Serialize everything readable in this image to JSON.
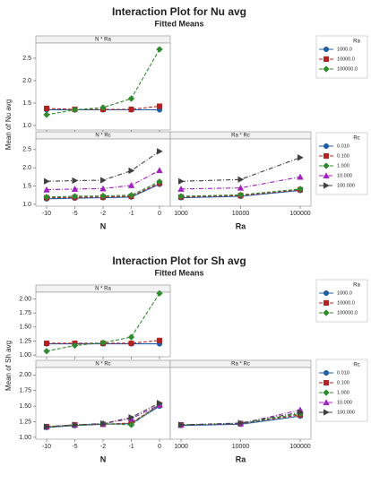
{
  "chart_data": [
    {
      "type": "line",
      "title": "Interaction Plot for Nu avg",
      "subtitle": "Fitted Means",
      "y_label": "Mean of Nu avg",
      "panels": [
        {
          "title": "N * Ra",
          "legend_title": "Ra",
          "categories": [
            null,
            null,
            null,
            null,
            null
          ],
          "ylim": [
            0.9,
            2.84
          ],
          "yticks": [
            {
              "value": 1,
              "label": "1.0"
            },
            1.5,
            {
              "value": 2,
              "label": "2.0"
            },
            2.5
          ],
          "series": [
            {
              "name": "1000.0",
              "color": "#1f5fa8",
              "marker": "circle",
              "dash": "solid",
              "values": [
                1.35,
                1.35,
                1.35,
                1.35,
                1.35
              ]
            },
            {
              "name": "10000.0",
              "color": "#b22222",
              "marker": "square",
              "dash": "dashed",
              "values": [
                1.38,
                1.36,
                1.36,
                1.36,
                1.43
              ]
            },
            {
              "name": "100000.0",
              "color": "#2e8b2e",
              "marker": "diamond",
              "dash": "dashed",
              "values": [
                1.24,
                1.35,
                1.4,
                1.6,
                2.7
              ]
            }
          ]
        },
        {
          "title": "N * Rc",
          "legend_title": "Rc",
          "x_label": "N",
          "categories": [
            "-10",
            "-5",
            "-2",
            "-1",
            "0"
          ],
          "ylim": [
            0.95,
            2.79
          ],
          "yticks": [
            {
              "value": 1,
              "label": "1.0"
            },
            1.5,
            {
              "value": 2,
              "label": "2.0"
            },
            2.5
          ],
          "series": [
            {
              "name": "0.010",
              "color": "#1f5fa8",
              "marker": "circle",
              "dash": "solid",
              "values": [
                1.15,
                1.17,
                1.18,
                1.2,
                1.55
              ]
            },
            {
              "name": "0.100",
              "color": "#b22222",
              "marker": "square",
              "dash": "dashed",
              "values": [
                1.18,
                1.19,
                1.2,
                1.22,
                1.58
              ]
            },
            {
              "name": "1.000",
              "color": "#2e8b2e",
              "marker": "diamond",
              "dash": "dashed",
              "values": [
                1.2,
                1.22,
                1.23,
                1.25,
                1.62
              ]
            },
            {
              "name": "10.000",
              "color": "#a020c0",
              "marker": "triangle",
              "dash": "dashdot",
              "values": [
                1.4,
                1.42,
                1.43,
                1.52,
                1.93
              ]
            },
            {
              "name": "100.000",
              "color": "#404040",
              "marker": "right-triangle",
              "dash": "dashdot",
              "values": [
                1.63,
                1.65,
                1.66,
                1.92,
                2.45
              ]
            }
          ]
        },
        {
          "title": "Ra * Rc",
          "x_label": "Ra",
          "categories": [
            "1000",
            "10000",
            "100000"
          ],
          "series": [
            {
              "color": "#1f5fa8",
              "marker": "circle",
              "dash": "solid",
              "values": [
                1.18,
                1.22,
                1.38
              ]
            },
            {
              "color": "#b22222",
              "marker": "square",
              "dash": "dashed",
              "values": [
                1.2,
                1.24,
                1.4
              ]
            },
            {
              "color": "#2e8b2e",
              "marker": "diamond",
              "dash": "dashed",
              "values": [
                1.22,
                1.26,
                1.42
              ]
            },
            {
              "color": "#a020c0",
              "marker": "triangle",
              "dash": "dashdot",
              "values": [
                1.42,
                1.45,
                1.75
              ]
            },
            {
              "color": "#404040",
              "marker": "right-triangle",
              "dash": "dashdot",
              "values": [
                1.63,
                1.68,
                2.28
              ]
            }
          ]
        }
      ]
    },
    {
      "type": "line",
      "title": "Interaction Plot for Sh avg",
      "subtitle": "Fitted Means",
      "y_label": "Mean of Sh avg",
      "panels": [
        {
          "title": "N * Ra",
          "legend_title": "Ra",
          "categories": [
            null,
            null,
            null,
            null,
            null
          ],
          "ylim": [
            0.97,
            2.12
          ],
          "yticks": [
            {
              "value": 1,
              "label": "1.00"
            },
            1.25,
            {
              "value": 1.5,
              "label": "1.50"
            },
            1.75,
            {
              "value": 2,
              "label": "2.00"
            }
          ],
          "series": [
            {
              "name": "1000.0",
              "color": "#1f5fa8",
              "marker": "circle",
              "dash": "solid",
              "values": [
                1.2,
                1.2,
                1.2,
                1.2,
                1.2
              ]
            },
            {
              "name": "10000.0",
              "color": "#b22222",
              "marker": "square",
              "dash": "dashed",
              "values": [
                1.21,
                1.21,
                1.21,
                1.21,
                1.26
              ]
            },
            {
              "name": "100000.0",
              "color": "#2e8b2e",
              "marker": "diamond",
              "dash": "dashed",
              "values": [
                1.07,
                1.17,
                1.22,
                1.32,
                2.1
              ]
            }
          ]
        },
        {
          "title": "N * Rc",
          "legend_title": "Rc",
          "x_label": "N",
          "categories": [
            "-10",
            "-5",
            "-2",
            "-1",
            "0"
          ],
          "ylim": [
            0.97,
            2.12
          ],
          "yticks": [
            {
              "value": 1,
              "label": "1.00"
            },
            1.25,
            {
              "value": 1.5,
              "label": "1.50"
            },
            1.75,
            {
              "value": 2,
              "label": "2.00"
            }
          ],
          "series": [
            {
              "name": "0.010",
              "color": "#1f5fa8",
              "marker": "circle",
              "dash": "solid",
              "values": [
                1.16,
                1.19,
                1.21,
                1.22,
                1.5
              ]
            },
            {
              "name": "0.100",
              "color": "#b22222",
              "marker": "square",
              "dash": "dashed",
              "values": [
                1.17,
                1.2,
                1.21,
                1.23,
                1.52
              ]
            },
            {
              "name": "1.000",
              "color": "#2e8b2e",
              "marker": "diamond",
              "dash": "dashed",
              "values": [
                1.16,
                1.19,
                1.22,
                1.2,
                1.53
              ]
            },
            {
              "name": "10.000",
              "color": "#a020c0",
              "marker": "triangle",
              "dash": "dashdot",
              "values": [
                1.17,
                1.2,
                1.22,
                1.3,
                1.52
              ]
            },
            {
              "name": "100.000",
              "color": "#404040",
              "marker": "right-triangle",
              "dash": "dashdot",
              "values": [
                1.17,
                1.2,
                1.22,
                1.32,
                1.55
              ]
            }
          ]
        },
        {
          "title": "Ra * Rc",
          "x_label": "Ra",
          "categories": [
            "1000",
            "10000",
            "100000"
          ],
          "series": [
            {
              "color": "#1f5fa8",
              "marker": "circle",
              "dash": "solid",
              "values": [
                1.19,
                1.21,
                1.34
              ]
            },
            {
              "color": "#b22222",
              "marker": "square",
              "dash": "dashed",
              "values": [
                1.2,
                1.22,
                1.36
              ]
            },
            {
              "color": "#2e8b2e",
              "marker": "diamond",
              "dash": "dashed",
              "values": [
                1.2,
                1.22,
                1.38
              ]
            },
            {
              "color": "#a020c0",
              "marker": "triangle",
              "dash": "dashdot",
              "values": [
                1.2,
                1.22,
                1.44
              ]
            },
            {
              "color": "#404040",
              "marker": "right-triangle",
              "dash": "dashdot",
              "values": [
                1.2,
                1.23,
                1.4
              ]
            }
          ]
        }
      ]
    }
  ]
}
